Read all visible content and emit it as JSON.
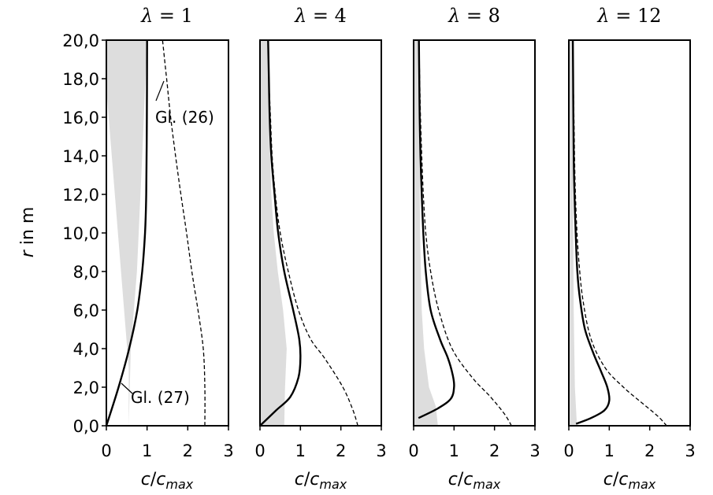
{
  "chart_data": {
    "type": "line",
    "ylabel_var": "r",
    "ylabel_unit": " in m",
    "xlabel_var": "c",
    "xlabel_slash": "/",
    "xlabel_sub_var": "c",
    "xlabel_sub": "max",
    "ylim": [
      0,
      20
    ],
    "xlim": [
      0,
      3
    ],
    "yticks": [
      "0,0",
      "2,0",
      "4,0",
      "6,0",
      "8,0",
      "10,0",
      "12,0",
      "14,0",
      "16,0",
      "18,0",
      "20,0"
    ],
    "xticks": [
      "0",
      "1",
      "2",
      "3"
    ],
    "annotations": [
      {
        "panel": 0,
        "text": "Gl. (26)",
        "series": "dashed"
      },
      {
        "panel": 0,
        "text": "Gl. (27)",
        "series": "solid"
      }
    ],
    "panels": [
      {
        "title_lhs": "λ",
        "title_rhs": "1",
        "shaded_x": [
          0,
          0,
          0,
          0.55,
          0.55,
          0.6,
          0.75,
          0.88,
          1.0
        ],
        "shaded_y": [
          20,
          17.5,
          17.5,
          3,
          0,
          4,
          8,
          14,
          20
        ],
        "solid": {
          "x": [
            0.0,
            0.3,
            0.56,
            0.76,
            0.88,
            0.95,
            0.98,
            0.995,
            1.0
          ],
          "y": [
            0.0,
            2.0,
            4.0,
            6.0,
            8.0,
            10.0,
            12.0,
            16.0,
            20.0
          ]
        },
        "dashed": {
          "x": [
            2.42,
            2.42,
            2.38,
            2.25,
            2.1,
            1.97,
            1.83,
            1.7,
            1.58,
            1.48,
            1.38
          ],
          "y": [
            0.0,
            2.0,
            4.0,
            6.0,
            8.0,
            10.0,
            12.0,
            14.0,
            16.0,
            18.0,
            20.0
          ]
        }
      },
      {
        "title_lhs": "λ",
        "title_rhs": "4",
        "shaded_x": [
          0.0,
          0.0,
          0.6,
          0.62,
          0.66,
          0.57,
          0.44,
          0.34,
          0.28,
          0.22,
          0.2
        ],
        "shaded_y": [
          20.0,
          0.0,
          0.0,
          2.0,
          4.0,
          6.0,
          8.0,
          10.0,
          12.0,
          16.0,
          20.0
        ],
        "solid": {
          "x": [
            0.0,
            0.4,
            0.75,
            0.95,
            1.0,
            0.97,
            0.82,
            0.6,
            0.45,
            0.36,
            0.28,
            0.24,
            0.22,
            0.2
          ],
          "y": [
            0.0,
            0.8,
            1.5,
            2.5,
            3.5,
            4.5,
            6.0,
            8.0,
            10.0,
            12.0,
            14.0,
            16.0,
            18.0,
            20.0
          ]
        },
        "dashed": {
          "x": [
            2.42,
            2.3,
            2.05,
            1.6,
            1.25,
            0.95,
            0.7,
            0.5,
            0.38,
            0.3,
            0.26,
            0.22,
            0.2
          ],
          "y": [
            0.0,
            0.8,
            2.0,
            3.5,
            4.5,
            6.0,
            8.0,
            10.0,
            12.0,
            14.0,
            16.0,
            18.0,
            20.0
          ]
        }
      },
      {
        "title_lhs": "λ",
        "title_rhs": "8",
        "shaded_x": [
          0.0,
          0.0,
          0.6,
          0.55,
          0.38,
          0.26,
          0.2,
          0.16,
          0.15,
          0.14,
          0.13
        ],
        "shaded_y": [
          20.0,
          0.0,
          0.0,
          1.0,
          2.0,
          4.0,
          6.0,
          10.0,
          14.0,
          18.0,
          20.0
        ],
        "solid": {
          "x": [
            0.12,
            0.6,
            0.92,
            1.0,
            0.97,
            0.85,
            0.65,
            0.42,
            0.3,
            0.24,
            0.2,
            0.17,
            0.15,
            0.14,
            0.13
          ],
          "y": [
            0.4,
            0.9,
            1.4,
            2.0,
            2.6,
            3.5,
            4.5,
            6.0,
            8.0,
            10.0,
            12.0,
            14.0,
            16.0,
            18.0,
            20.0
          ]
        },
        "dashed": {
          "x": [
            2.42,
            2.25,
            1.9,
            1.45,
            0.95,
            0.62,
            0.42,
            0.3,
            0.24,
            0.2,
            0.17,
            0.15,
            0.14,
            0.13
          ],
          "y": [
            0.0,
            0.6,
            1.5,
            2.5,
            4.0,
            6.0,
            8.0,
            10.0,
            12.0,
            14.0,
            16.0,
            18.0,
            19.0,
            20.0
          ]
        }
      },
      {
        "title_lhs": "λ",
        "title_rhs": "12",
        "shaded_x": [
          0.0,
          0.0,
          0.2,
          0.15,
          0.12,
          0.11,
          0.1,
          0.1
        ],
        "shaded_y": [
          20.0,
          0.0,
          0.0,
          2.0,
          6.0,
          10.0,
          16.0,
          20.0
        ],
        "solid": {
          "x": [
            0.18,
            0.55,
            0.88,
            1.0,
            0.95,
            0.8,
            0.6,
            0.4,
            0.28,
            0.21,
            0.17,
            0.14,
            0.12,
            0.11,
            0.1
          ],
          "y": [
            0.1,
            0.4,
            0.8,
            1.3,
            2.0,
            2.8,
            3.8,
            5.0,
            6.5,
            8.0,
            10.0,
            12.0,
            14.0,
            17.0,
            20.0
          ]
        },
        "dashed": {
          "x": [
            2.42,
            2.2,
            1.8,
            1.35,
            0.9,
            0.55,
            0.35,
            0.25,
            0.19,
            0.15,
            0.13,
            0.11,
            0.1
          ],
          "y": [
            0.0,
            0.5,
            1.2,
            2.0,
            3.0,
            4.5,
            6.5,
            8.5,
            10.5,
            13.0,
            15.5,
            18.0,
            20.0
          ]
        }
      }
    ]
  }
}
